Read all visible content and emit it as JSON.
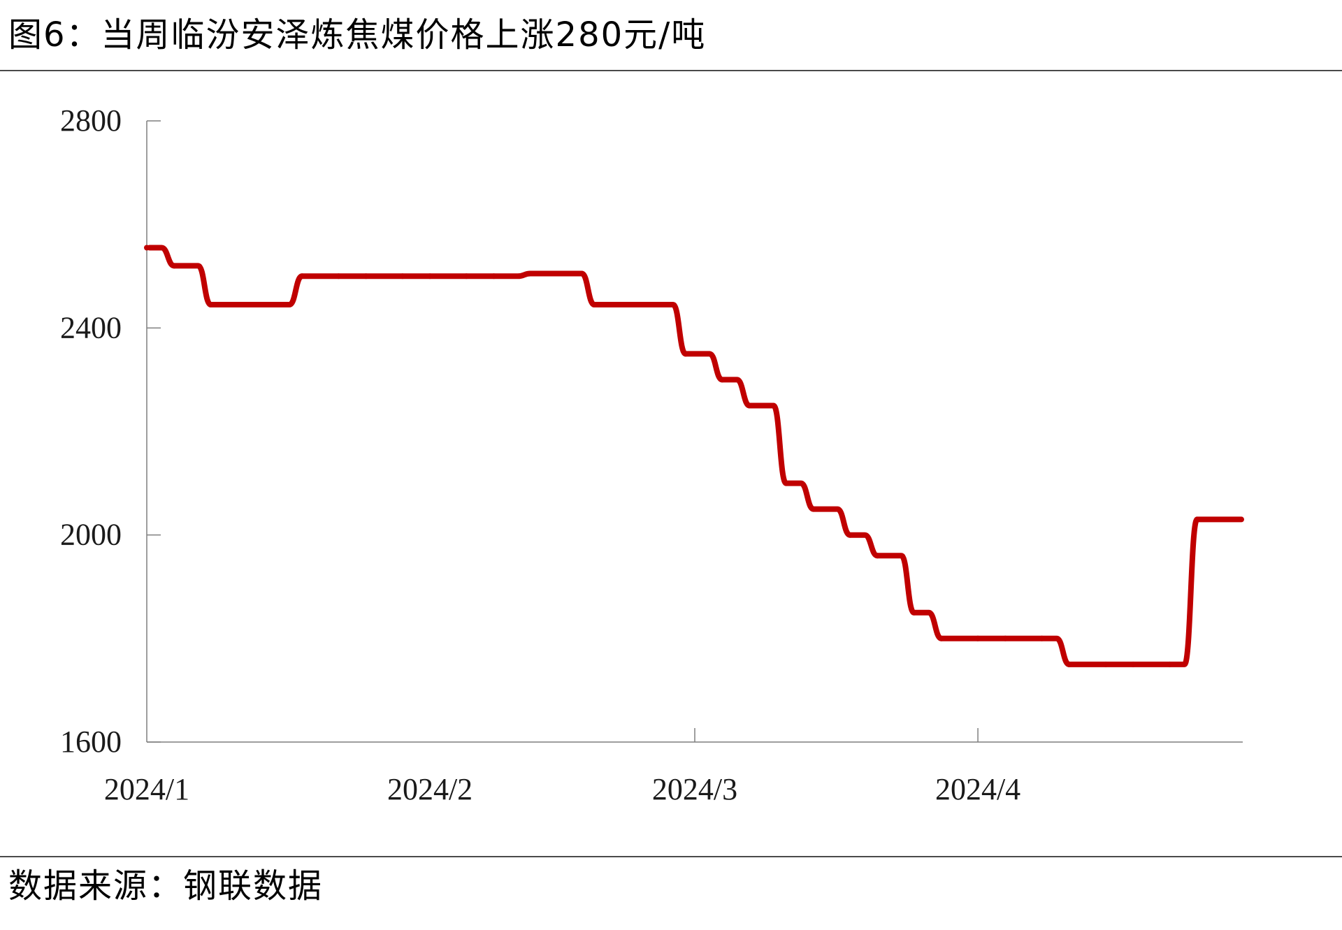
{
  "figure": {
    "title": "图6：当周临汾安泽炼焦煤价格上涨280元/吨",
    "source": "数据来源：钢联数据"
  },
  "chart_data": {
    "type": "line",
    "title": "图6：当周临汾安泽炼焦煤价格上涨280元/吨",
    "xlabel": "",
    "ylabel": "",
    "ylim": [
      1600,
      2800
    ],
    "yticks": [
      "2800",
      "2400",
      "2000",
      "1600"
    ],
    "xticks": [
      "2024/1",
      "2024/2",
      "2024/3",
      "2024/4"
    ],
    "grid": false,
    "legend": "none",
    "series_color": "#c00000",
    "x": [
      "2024-01-01",
      "2024-01-04",
      "2024-01-08",
      "2024-01-11",
      "2024-01-15",
      "2024-01-18",
      "2024-01-22",
      "2024-01-25",
      "2024-01-29",
      "2024-02-01",
      "2024-02-05",
      "2024-02-08",
      "2024-02-12",
      "2024-02-15",
      "2024-02-19",
      "2024-02-22",
      "2024-02-26",
      "2024-02-29",
      "2024-03-04",
      "2024-03-07",
      "2024-03-11",
      "2024-03-14",
      "2024-03-18",
      "2024-03-21",
      "2024-03-25",
      "2024-03-28",
      "2024-04-01",
      "2024-04-04",
      "2024-04-08",
      "2024-04-11",
      "2024-04-15",
      "2024-04-18",
      "2024-04-22",
      "2024-04-25"
    ],
    "series": [
      {
        "values": [
          2555,
          2520,
          2445,
          2445,
          2445,
          2500,
          2500,
          2500,
          2500,
          2500,
          2500,
          2500,
          2505,
          2505,
          2445,
          2445,
          2445,
          2350,
          2300,
          2250,
          2100,
          2050,
          2000,
          1960,
          1850,
          1800,
          1800,
          1800,
          1800,
          1750,
          1750,
          1750,
          1750,
          2030
        ]
      }
    ]
  }
}
